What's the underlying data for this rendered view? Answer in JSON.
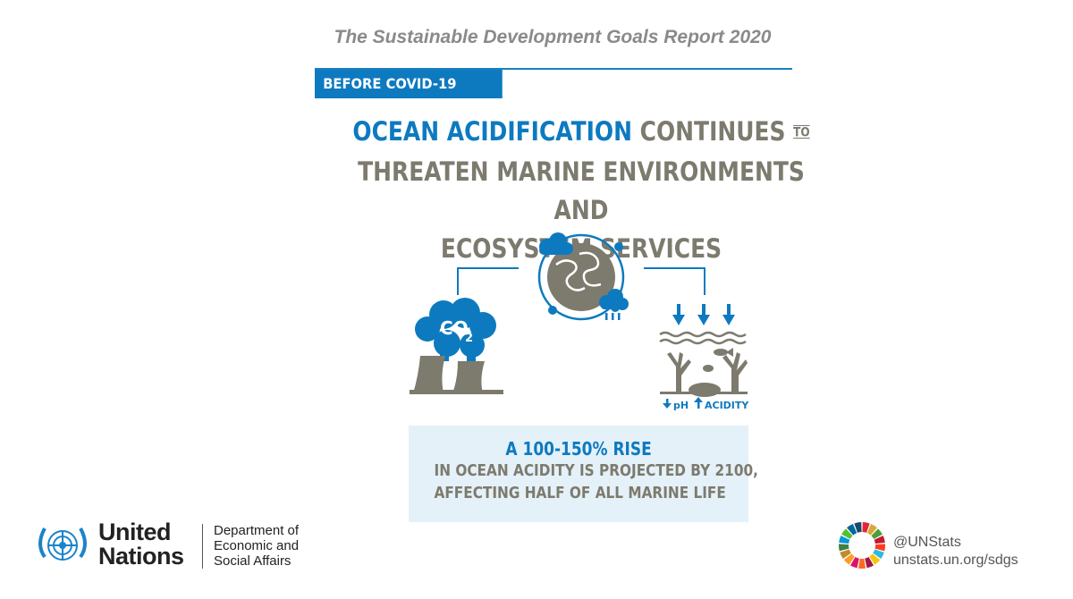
{
  "header": {
    "title": "The Sustainable Development Goals Report 2020",
    "badge": "BEFORE COVID-19"
  },
  "headline": {
    "highlight": "OCEAN ACIDIFICATION",
    "part1": "CONTINUES",
    "to": "TO",
    "line2": "THREATEN MARINE ENVIRONMENTS AND",
    "line3": "ECOSYSTEM SERVICES"
  },
  "illustration": {
    "co2_label": "CO",
    "co2_subscript": "2",
    "ph_label": "pH",
    "acidity_label": "ACIDITY",
    "icons": [
      "factory-co2-icon",
      "earth-cycle-icon",
      "ocean-acidity-icon"
    ]
  },
  "fact": {
    "headline": "A 100-150% RISE",
    "line1": "IN OCEAN ACIDITY IS PROJECTED BY 2100,",
    "line2": "AFFECTING HALF OF ALL MARINE LIFE"
  },
  "footer": {
    "org_line1": "United",
    "org_line2": "Nations",
    "dept_line1": "Department of",
    "dept_line2": "Economic and",
    "dept_line3": "Social Affairs",
    "handle": "@UNStats",
    "url": "unstats.un.org/sdgs"
  },
  "colors": {
    "accent_blue": "#0d7ac0",
    "text_grey": "#7d7a6e",
    "fact_bg": "#e4f1f8"
  }
}
